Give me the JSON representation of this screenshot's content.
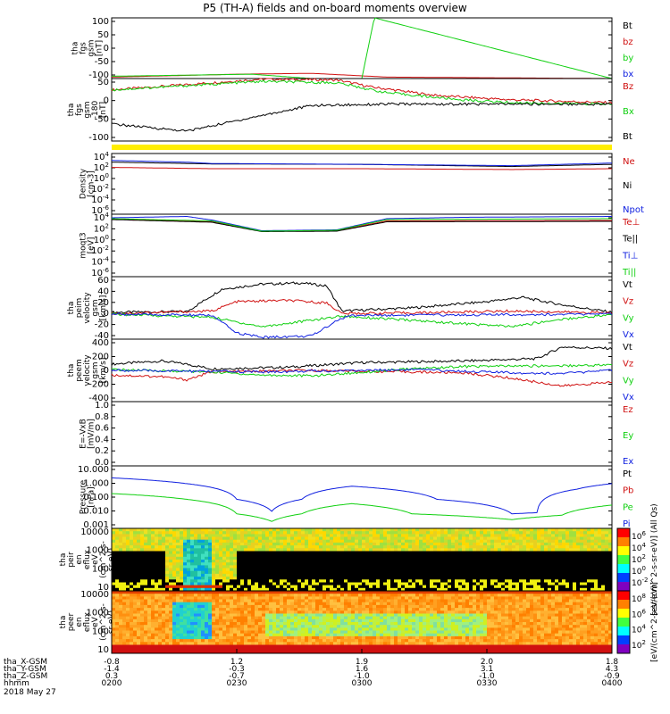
{
  "title": "P5 (TH-A) fields and on-board moments overview",
  "colors": {
    "black": "#000000",
    "red": "#d01010",
    "green": "#10d010",
    "blue": "#1020e0",
    "darkred": "#8b0000",
    "yellow": "#ffee00"
  },
  "chart_data": [
    {
      "type": "line",
      "panel": "fgs",
      "ylabel": [
        "tha",
        "fgs",
        "gsm",
        "[nT]"
      ],
      "ylim": [
        -100,
        110
      ],
      "yticks": [
        "100",
        "50",
        "0",
        "-50",
        "-100"
      ],
      "series": [
        {
          "name": "Bt",
          "color": "black",
          "values": []
        },
        {
          "name": "bz",
          "color": "red",
          "values": [
            [
              0,
              -95
            ],
            [
              2.5,
              -85
            ],
            [
              4,
              -82
            ],
            [
              5.5,
              -95
            ],
            [
              10,
              -100
            ]
          ]
        },
        {
          "name": "by",
          "color": "green",
          "values": [
            [
              0,
              -92
            ],
            [
              2.8,
              -85
            ],
            [
              4,
              -100
            ],
            [
              5,
              -100
            ],
            [
              5.25,
              110
            ],
            [
              10,
              -100
            ]
          ]
        },
        {
          "name": "bx",
          "color": "blue",
          "values": []
        }
      ]
    },
    {
      "type": "line",
      "panel": "fgs-zoom",
      "ylabel": [
        "tha",
        "fgs",
        "gsm",
        "-180",
        "[nT]"
      ],
      "ylim": [
        -130,
        90
      ],
      "yticks": [
        "50",
        "0",
        "-50",
        "-100"
      ],
      "series": [
        {
          "name": "Bz",
          "color": "red",
          "values": [
            [
              0,
              50
            ],
            [
              2,
              75
            ],
            [
              3,
              88
            ],
            [
              4.5,
              85
            ],
            [
              5.2,
              60
            ],
            [
              6.5,
              30
            ],
            [
              8,
              15
            ],
            [
              10,
              5
            ]
          ]
        },
        {
          "name": "Bx",
          "color": "green",
          "values": [
            [
              0,
              50
            ],
            [
              2,
              70
            ],
            [
              3,
              80
            ],
            [
              4.5,
              75
            ],
            [
              5.5,
              40
            ],
            [
              7,
              15
            ],
            [
              8,
              5
            ],
            [
              10,
              0
            ]
          ]
        },
        {
          "name": "Bt",
          "color": "black",
          "values": [
            [
              0,
              -70
            ],
            [
              1.5,
              -95
            ],
            [
              3,
              -40
            ],
            [
              4,
              -5
            ],
            [
              5.5,
              0
            ],
            [
              7,
              0
            ],
            [
              10,
              0
            ]
          ]
        }
      ]
    },
    {
      "type": "line",
      "panel": "density",
      "ylabel": [
        "Density",
        "[cm-3]"
      ],
      "ylim": [
        -10,
        4
      ],
      "yticks": [
        "10",
        "10",
        "10",
        "10",
        "10",
        "10"
      ],
      "yticks_exp": [
        "4",
        "2",
        "0",
        "-2",
        "-4",
        "-6"
      ],
      "log": true,
      "series": [
        {
          "name": "Ne",
          "color": "red",
          "values": [
            [
              0,
              0.8
            ],
            [
              2,
              0.5
            ],
            [
              5,
              0.5
            ],
            [
              8,
              0.3
            ],
            [
              10,
              0.5
            ]
          ]
        },
        {
          "name": "Ni",
          "color": "black",
          "values": [
            [
              0,
              2.0
            ],
            [
              2,
              1.6
            ],
            [
              5,
              1.5
            ],
            [
              8,
              1.0
            ],
            [
              10,
              1.5
            ]
          ]
        },
        {
          "name": "Npot",
          "color": "blue",
          "values": [
            [
              0,
              2.4
            ],
            [
              1.5,
              2.0
            ],
            [
              2,
              1.7
            ],
            [
              5,
              1.5
            ],
            [
              8,
              1.2
            ],
            [
              10,
              1.8
            ]
          ]
        }
      ]
    },
    {
      "type": "line",
      "panel": "moqt3",
      "ylabel": [
        "moqt3",
        "[eV]"
      ],
      "ylim": [
        -10,
        4
      ],
      "yticks": [
        "10",
        "10",
        "10",
        "10",
        "10",
        "10"
      ],
      "yticks_exp": [
        "4",
        "2",
        "0",
        "-2",
        "-4",
        "-6"
      ],
      "log": true,
      "series": [
        {
          "name": "Te⊥",
          "color": "red",
          "values": [
            [
              0,
              2.9
            ],
            [
              2,
              2.3
            ],
            [
              3,
              0.2
            ],
            [
              4.5,
              0.3
            ],
            [
              5.5,
              2.5
            ],
            [
              10,
              2.6
            ]
          ]
        },
        {
          "name": "Te||",
          "color": "black",
          "values": [
            [
              0,
              2.8
            ],
            [
              2,
              2.2
            ],
            [
              3,
              0.1
            ],
            [
              4.5,
              0.2
            ],
            [
              5.5,
              2.3
            ],
            [
              10,
              2.4
            ]
          ]
        },
        {
          "name": "Ti⊥",
          "color": "blue",
          "values": [
            [
              0,
              3.2
            ],
            [
              1.5,
              3.5
            ],
            [
              2,
              2.7
            ],
            [
              3,
              0.3
            ],
            [
              4.5,
              0.5
            ],
            [
              5.5,
              3.0
            ],
            [
              7,
              3.3
            ],
            [
              10,
              3.5
            ]
          ]
        },
        {
          "name": "Ti||",
          "color": "green",
          "values": [
            [
              0,
              3.0
            ],
            [
              2,
              2.5
            ],
            [
              3,
              0.2
            ],
            [
              4.5,
              0.4
            ],
            [
              5.5,
              2.8
            ],
            [
              10,
              3.0
            ]
          ]
        }
      ]
    },
    {
      "type": "line",
      "panel": "peim-velocity",
      "ylabel": [
        "tha",
        "peim",
        "velocity",
        "gsm",
        "[km/s]"
      ],
      "ylim": [
        -40,
        60
      ],
      "yticks": [
        "60",
        "40",
        "20",
        "0",
        "-20",
        "-40"
      ],
      "series": [
        {
          "name": "Vt",
          "color": "black",
          "values": [
            [
              0,
              3
            ],
            [
              1.5,
              4
            ],
            [
              2.2,
              40
            ],
            [
              3,
              48
            ],
            [
              3.8,
              50
            ],
            [
              4.3,
              45
            ],
            [
              4.6,
              5
            ],
            [
              6,
              10
            ],
            [
              7.5,
              20
            ],
            [
              8.2,
              27
            ],
            [
              9,
              15
            ],
            [
              10,
              3
            ]
          ]
        },
        {
          "name": "Vz",
          "color": "red",
          "values": [
            [
              0,
              1
            ],
            [
              2,
              5
            ],
            [
              2.5,
              20
            ],
            [
              3.5,
              22
            ],
            [
              4.3,
              18
            ],
            [
              4.6,
              1
            ],
            [
              6,
              2
            ],
            [
              8,
              5
            ],
            [
              10,
              2
            ]
          ]
        },
        {
          "name": "Vy",
          "color": "green",
          "values": [
            [
              0,
              0
            ],
            [
              2,
              -5
            ],
            [
              3,
              -20
            ],
            [
              3.5,
              -15
            ],
            [
              4.6,
              -3
            ],
            [
              6,
              -10
            ],
            [
              8,
              -20
            ],
            [
              9,
              -8
            ],
            [
              10,
              -1
            ]
          ]
        },
        {
          "name": "Vx",
          "color": "blue",
          "values": [
            [
              0,
              0
            ],
            [
              2,
              -2
            ],
            [
              2.5,
              -30
            ],
            [
              3,
              -37
            ],
            [
              4,
              -35
            ],
            [
              4.5,
              -10
            ],
            [
              4.8,
              -2
            ],
            [
              10,
              0
            ]
          ]
        }
      ]
    },
    {
      "type": "line",
      "panel": "peem-velocity",
      "ylabel": [
        "tha",
        "peem",
        "velocity",
        "gsm",
        "[km/s]"
      ],
      "ylim": [
        -400,
        400
      ],
      "yticks": [
        "400",
        "200",
        "0",
        "-200",
        "-400"
      ],
      "series": [
        {
          "name": "Vt",
          "color": "black",
          "values": [
            [
              0,
              80
            ],
            [
              1,
              120
            ],
            [
              1.5,
              80
            ],
            [
              2,
              20
            ],
            [
              3.5,
              40
            ],
            [
              5,
              100
            ],
            [
              7,
              120
            ],
            [
              8.5,
              150
            ],
            [
              9,
              300
            ],
            [
              10,
              280
            ]
          ]
        },
        {
          "name": "Vz",
          "color": "red",
          "values": [
            [
              0,
              -60
            ],
            [
              1,
              -80
            ],
            [
              1.5,
              -120
            ],
            [
              2,
              -20
            ],
            [
              4,
              0
            ],
            [
              6,
              -20
            ],
            [
              7,
              -30
            ],
            [
              8,
              -100
            ],
            [
              9,
              -200
            ],
            [
              10,
              -150
            ]
          ]
        },
        {
          "name": "Vy",
          "color": "green",
          "values": [
            [
              0,
              10
            ],
            [
              2,
              -20
            ],
            [
              3,
              -60
            ],
            [
              4,
              -70
            ],
            [
              6,
              20
            ],
            [
              7,
              50
            ],
            [
              9,
              60
            ],
            [
              10,
              70
            ]
          ]
        },
        {
          "name": "Vx",
          "color": "blue",
          "values": [
            [
              0,
              0
            ],
            [
              3,
              -20
            ],
            [
              6,
              10
            ],
            [
              8,
              -30
            ],
            [
              9,
              -40
            ],
            [
              10,
              0
            ]
          ]
        }
      ]
    },
    {
      "type": "line",
      "panel": "E-field",
      "ylabel": [
        "E=-VxB",
        "[mV/m]"
      ],
      "ylim": [
        0,
        1
      ],
      "yticks": [
        "1.0",
        "0.8",
        "0.6",
        "0.4",
        "0.2",
        "0.0"
      ],
      "series": [
        {
          "name": "Ez",
          "color": "red",
          "values": []
        },
        {
          "name": "Ey",
          "color": "green",
          "values": []
        },
        {
          "name": "Ex",
          "color": "blue",
          "values": []
        }
      ]
    },
    {
      "type": "line",
      "panel": "pressure",
      "ylabel": [
        "Pressure",
        "[nPa]"
      ],
      "ylim": [
        0.001,
        20
      ],
      "log": true,
      "yticks": [
        "10.000",
        "1.000",
        "0.100",
        "0.010",
        "0.001"
      ],
      "series": [
        {
          "name": "Pt",
          "color": "black",
          "values": []
        },
        {
          "name": "Pb",
          "color": "red",
          "values": []
        },
        {
          "name": "Pe",
          "color": "green",
          "values": [
            [
              0,
              0.25
            ],
            [
              1.5,
              0.1
            ],
            [
              2.5,
              0.01
            ],
            [
              3.2,
              0.003
            ],
            [
              3.8,
              0.01
            ],
            [
              4.8,
              0.05
            ],
            [
              6,
              0.01
            ],
            [
              8,
              0.004
            ],
            [
              9,
              0.008
            ],
            [
              10,
              0.04
            ]
          ]
        },
        {
          "name": "Pi",
          "color": "blue",
          "values": [
            [
              0,
              3
            ],
            [
              1.5,
              1.2
            ],
            [
              2.5,
              0.1
            ],
            [
              3.2,
              0.015
            ],
            [
              3.8,
              0.1
            ],
            [
              4.8,
              0.8
            ],
            [
              6.5,
              0.1
            ],
            [
              8,
              0.01
            ],
            [
              8.5,
              0.012
            ],
            [
              9.3,
              0.5
            ],
            [
              10,
              1.2
            ]
          ]
        }
      ]
    },
    {
      "type": "heatmap",
      "panel": "peir-eflux",
      "ylabel": [
        "tha",
        "peir",
        "en",
        "eflux",
        "eV",
        "(cm^2-s-",
        "sr-eV)"
      ],
      "yticks": [
        "10000",
        "1000",
        "100",
        "10"
      ],
      "colorbar_label": "[eV/(cm^2-s-sr-eV)] (All Qs)",
      "colorbar_ticks": [
        "10",
        "10",
        "10",
        "10",
        "10"
      ],
      "colorbar_exp": [
        "6",
        "4",
        "2",
        "0",
        "-2"
      ]
    },
    {
      "type": "heatmap",
      "panel": "peer-eflux",
      "ylabel": [
        "tha",
        "peer",
        "en",
        "eflux",
        "eV",
        "(cm^2-s-",
        "sr-eV)"
      ],
      "yticks": [
        "10000",
        "1000",
        "100",
        "10"
      ],
      "colorbar_label": "[eV/(cm^2-s-sr-eV)]",
      "colorbar_ticks": [
        "10",
        "10",
        "10",
        "10"
      ],
      "colorbar_exp": [
        "8",
        "6",
        "4",
        "2"
      ]
    }
  ],
  "x_axis": {
    "row_labels": [
      "tha_X-GSM",
      "tha_Y-GSM",
      "tha_Z-GSM",
      "hhmm",
      "2018 May 27"
    ],
    "columns": [
      {
        "x": "-0.8",
        "y": "-1.4",
        "z": "0.3",
        "t": "0200"
      },
      {
        "x": "1.2",
        "y": "-0.3",
        "z": "-0.7",
        "t": "0230"
      },
      {
        "x": "1.9",
        "y": "1.6",
        "z": "-1.0",
        "t": "0300"
      },
      {
        "x": "2.0",
        "y": "3.1",
        "z": "-1.0",
        "t": "0330"
      },
      {
        "x": "1.8",
        "y": "4.3",
        "z": "-0.9",
        "t": "0400"
      }
    ]
  }
}
